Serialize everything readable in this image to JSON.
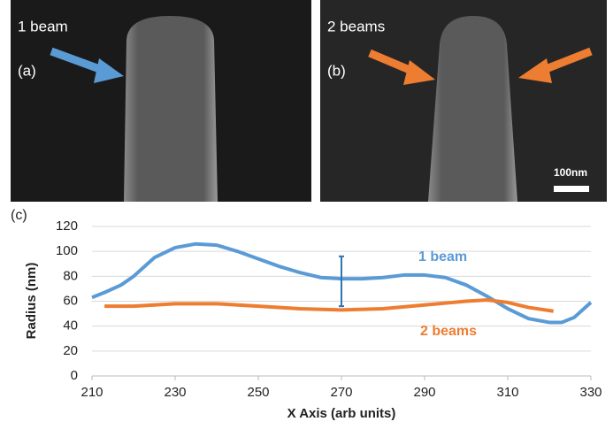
{
  "panels": [
    {
      "title": "1 beam",
      "label": "(a)"
    },
    {
      "title": "2 beams",
      "label": "(b)",
      "scale_bar": "100nm"
    }
  ],
  "chart_data": {
    "type": "line",
    "label": "(c)",
    "x_label": "X Axis (arb units)",
    "y_label": "Radius (nm)",
    "xlim": [
      210,
      330
    ],
    "xticks": [
      210,
      230,
      250,
      270,
      290,
      310,
      330
    ],
    "ylim": [
      0,
      120
    ],
    "yticks": [
      0,
      20,
      40,
      60,
      80,
      100,
      120
    ],
    "grid": true,
    "series": [
      {
        "name": "1 beam",
        "color": "#5b9bd5",
        "x": [
          210,
          213,
          217,
          220,
          225,
          230,
          235,
          240,
          245,
          250,
          255,
          260,
          265,
          270,
          275,
          280,
          285,
          290,
          295,
          300,
          305,
          310,
          315,
          320,
          323,
          326,
          330
        ],
        "values": [
          63,
          67,
          73,
          80,
          95,
          103,
          106,
          105,
          100,
          94,
          88,
          83,
          79,
          78,
          78,
          79,
          81,
          81,
          79,
          73,
          64,
          54,
          46,
          43,
          43,
          47,
          59
        ]
      },
      {
        "name": "2 beams",
        "color": "#ed7d31",
        "x": [
          213,
          220,
          230,
          240,
          250,
          260,
          270,
          280,
          290,
          300,
          305,
          310,
          315,
          321
        ],
        "values": [
          56,
          56,
          58,
          58,
          56,
          54,
          53,
          54,
          57,
          60,
          61,
          59,
          55,
          52
        ]
      }
    ],
    "error_bar": {
      "x": 270,
      "low": 56,
      "high": 96,
      "color": "#2e75b6"
    }
  }
}
